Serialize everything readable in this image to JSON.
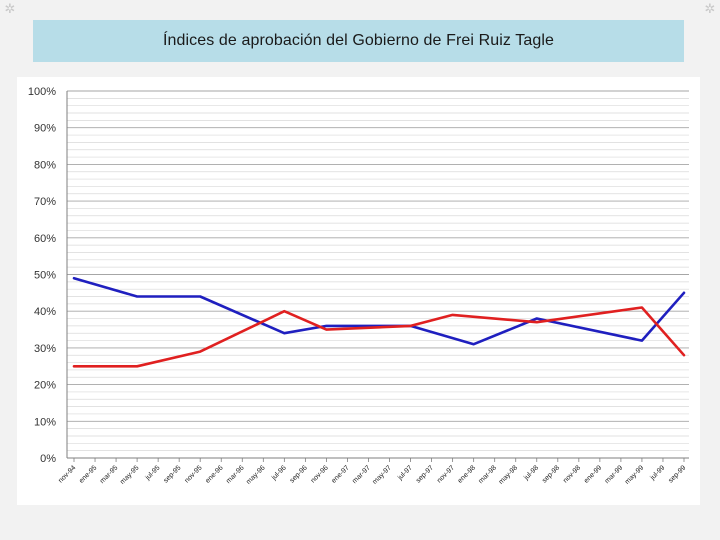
{
  "title": "Índices de aprobación del Gobierno de Frei Ruiz Tagle",
  "chart_data": {
    "type": "line",
    "title": "",
    "xlabel": "",
    "ylabel": "",
    "ylim": [
      0,
      100
    ],
    "ytick_labels": [
      "0%",
      "10%",
      "20%",
      "30%",
      "40%",
      "50%",
      "60%",
      "70%",
      "80%",
      "90%",
      "100%"
    ],
    "yticks": [
      0,
      10,
      20,
      30,
      40,
      50,
      60,
      70,
      80,
      90,
      100
    ],
    "minor_gridlines_step": 2,
    "grid": true,
    "legend": "none",
    "categories": [
      "nov-94",
      "ene-95",
      "mar-95",
      "may-95",
      "jul-95",
      "sep-95",
      "nov-95",
      "ene-96",
      "mar-96",
      "may-96",
      "jul-96",
      "sep-96",
      "nov-96",
      "ene-97",
      "mar-97",
      "may-97",
      "jul-97",
      "sep-97",
      "nov-97",
      "ene-98",
      "mar-98",
      "may-98",
      "jul-98",
      "sep-98",
      "nov-98",
      "ene-99",
      "mar-99",
      "may-99",
      "jul-99",
      "sep-99"
    ],
    "series": [
      {
        "color": "#1f1fbf",
        "points": [
          {
            "x": "nov-94",
            "y": 49
          },
          {
            "x": "may-95",
            "y": 44
          },
          {
            "x": "nov-95",
            "y": 44
          },
          {
            "x": "jul-96",
            "y": 34
          },
          {
            "x": "nov-96",
            "y": 36
          },
          {
            "x": "jul-97",
            "y": 36
          },
          {
            "x": "ene-98",
            "y": 31
          },
          {
            "x": "jul-98",
            "y": 38
          },
          {
            "x": "may-99",
            "y": 32
          },
          {
            "x": "sep-99",
            "y": 45
          }
        ]
      },
      {
        "color": "#e02020",
        "points": [
          {
            "x": "nov-94",
            "y": 25
          },
          {
            "x": "may-95",
            "y": 25
          },
          {
            "x": "nov-95",
            "y": 29
          },
          {
            "x": "jul-96",
            "y": 40
          },
          {
            "x": "nov-96",
            "y": 35
          },
          {
            "x": "jul-97",
            "y": 36
          },
          {
            "x": "nov-97",
            "y": 39
          },
          {
            "x": "jul-98",
            "y": 37
          },
          {
            "x": "may-99",
            "y": 41
          },
          {
            "x": "sep-99",
            "y": 28
          }
        ]
      }
    ]
  }
}
